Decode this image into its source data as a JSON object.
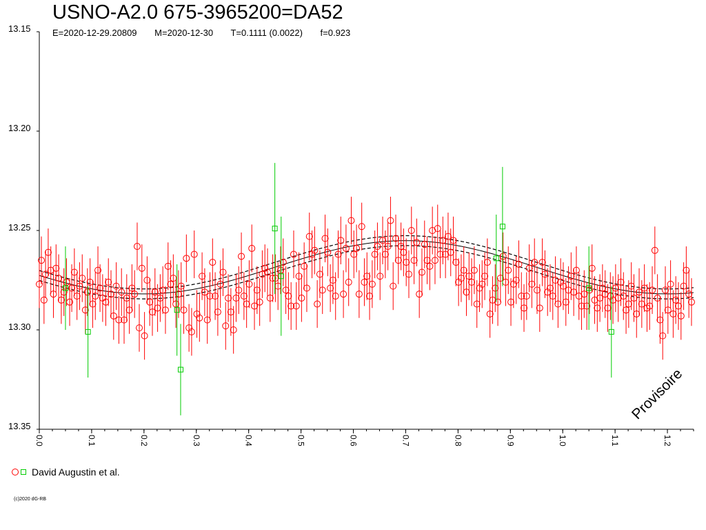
{
  "title": "USNO-A2.0 675-3965200=DA52",
  "subtitle": {
    "epoch": "E=2020-12-29.20809",
    "max": "M=2020-12-30",
    "period": "T=0.1111 (0.0022)",
    "freq": "f=0.923"
  },
  "legend": {
    "label": "David Augustin et al."
  },
  "copyright": "(c)2020 dG-RB",
  "watermark": "Provisoire",
  "colors": {
    "primary": "#ff0000",
    "secondary": "#00cc00",
    "fit": "#000000"
  },
  "chart_data": {
    "type": "scatter",
    "title": "USNO-A2.0 675-3965200=DA52",
    "xlim": [
      0.0,
      1.25
    ],
    "ylim": [
      13.15,
      13.35
    ],
    "y_inverted": true,
    "x_ticks": [
      "0.0",
      "0.1",
      "0.2",
      "0.3",
      "0.4",
      "0.5",
      "0.6",
      "0.7",
      "0.8",
      "0.9",
      "1.0",
      "1.1",
      "1.2"
    ],
    "y_ticks": [
      "13.15",
      "13.20",
      "13.25",
      "13.30",
      "13.35"
    ],
    "fit": {
      "mean": 13.2685,
      "amplitude": 0.0134,
      "phase_max": 0.7,
      "band": 0.0025
    },
    "series": [
      {
        "name": "David Augustin et al.",
        "marker": "circle",
        "points": [
          [
            0.0,
            13.277
          ],
          [
            0.004,
            13.265
          ],
          [
            0.009,
            13.285
          ],
          [
            0.012,
            13.272
          ],
          [
            0.017,
            13.261
          ],
          [
            0.022,
            13.27
          ],
          [
            0.027,
            13.282
          ],
          [
            0.032,
            13.269
          ],
          [
            0.037,
            13.274
          ],
          [
            0.042,
            13.285
          ],
          [
            0.047,
            13.281
          ],
          [
            0.052,
            13.276
          ],
          [
            0.058,
            13.286
          ],
          [
            0.062,
            13.279
          ],
          [
            0.067,
            13.271
          ],
          [
            0.072,
            13.283
          ],
          [
            0.077,
            13.278
          ],
          [
            0.082,
            13.274
          ],
          [
            0.088,
            13.29
          ],
          [
            0.092,
            13.281
          ],
          [
            0.097,
            13.276
          ],
          [
            0.102,
            13.287
          ],
          [
            0.107,
            13.283
          ],
          [
            0.112,
            13.27
          ],
          [
            0.116,
            13.279
          ],
          [
            0.121,
            13.284
          ],
          [
            0.127,
            13.286
          ],
          [
            0.132,
            13.276
          ],
          [
            0.137,
            13.282
          ],
          [
            0.142,
            13.293
          ],
          [
            0.147,
            13.278
          ],
          [
            0.152,
            13.295
          ],
          [
            0.157,
            13.281
          ],
          [
            0.162,
            13.295
          ],
          [
            0.167,
            13.284
          ],
          [
            0.172,
            13.29
          ],
          [
            0.177,
            13.279
          ],
          [
            0.182,
            13.282
          ],
          [
            0.187,
            13.258
          ],
          [
            0.191,
            13.299
          ],
          [
            0.196,
            13.269
          ],
          [
            0.201,
            13.303
          ],
          [
            0.206,
            13.275
          ],
          [
            0.211,
            13.286
          ],
          [
            0.216,
            13.291
          ],
          [
            0.221,
            13.281
          ],
          [
            0.226,
            13.289
          ],
          [
            0.231,
            13.284
          ],
          [
            0.236,
            13.28
          ],
          [
            0.241,
            13.29
          ],
          [
            0.246,
            13.268
          ],
          [
            0.251,
            13.277
          ],
          [
            0.256,
            13.274
          ],
          [
            0.261,
            13.287
          ],
          [
            0.266,
            13.282
          ],
          [
            0.271,
            13.278
          ],
          [
            0.276,
            13.29
          ],
          [
            0.281,
            13.264
          ],
          [
            0.286,
            13.299
          ],
          [
            0.291,
            13.301
          ],
          [
            0.296,
            13.262
          ],
          [
            0.301,
            13.292
          ],
          [
            0.306,
            13.294
          ],
          [
            0.311,
            13.273
          ],
          [
            0.316,
            13.281
          ],
          [
            0.321,
            13.295
          ],
          [
            0.326,
            13.283
          ],
          [
            0.331,
            13.266
          ],
          [
            0.336,
            13.283
          ],
          [
            0.341,
            13.291
          ],
          [
            0.346,
            13.277
          ],
          [
            0.351,
            13.271
          ],
          [
            0.356,
            13.298
          ],
          [
            0.361,
            13.284
          ],
          [
            0.366,
            13.291
          ],
          [
            0.371,
            13.3
          ],
          [
            0.376,
            13.284
          ],
          [
            0.381,
            13.28
          ],
          [
            0.386,
            13.263
          ],
          [
            0.391,
            13.283
          ],
          [
            0.396,
            13.287
          ],
          [
            0.401,
            13.277
          ],
          [
            0.406,
            13.259
          ],
          [
            0.411,
            13.288
          ],
          [
            0.416,
            13.28
          ],
          [
            0.421,
            13.286
          ],
          [
            0.426,
            13.272
          ],
          [
            0.431,
            13.269
          ],
          [
            0.436,
            13.271
          ],
          [
            0.441,
            13.284
          ],
          [
            0.446,
            13.274
          ],
          [
            0.451,
            13.274
          ],
          [
            0.456,
            13.278
          ],
          [
            0.461,
            13.27
          ],
          [
            0.466,
            13.266
          ],
          [
            0.471,
            13.28
          ],
          [
            0.476,
            13.283
          ],
          [
            0.481,
            13.288
          ],
          [
            0.486,
            13.262
          ],
          [
            0.491,
            13.288
          ],
          [
            0.496,
            13.273
          ],
          [
            0.501,
            13.284
          ],
          [
            0.506,
            13.268
          ],
          [
            0.511,
            13.279
          ],
          [
            0.516,
            13.253
          ],
          [
            0.521,
            13.262
          ],
          [
            0.526,
            13.26
          ],
          [
            0.531,
            13.287
          ],
          [
            0.536,
            13.272
          ],
          [
            0.541,
            13.28
          ],
          [
            0.546,
            13.254
          ],
          [
            0.551,
            13.261
          ],
          [
            0.556,
            13.279
          ],
          [
            0.561,
            13.275
          ],
          [
            0.566,
            13.283
          ],
          [
            0.571,
            13.262
          ],
          [
            0.576,
            13.255
          ],
          [
            0.581,
            13.282
          ],
          [
            0.586,
            13.259
          ],
          [
            0.591,
            13.276
          ],
          [
            0.596,
            13.245
          ],
          [
            0.601,
            13.262
          ],
          [
            0.606,
            13.259
          ],
          [
            0.611,
            13.282
          ],
          [
            0.616,
            13.248
          ],
          [
            0.621,
            13.276
          ],
          [
            0.626,
            13.273
          ],
          [
            0.631,
            13.283
          ],
          [
            0.636,
            13.277
          ],
          [
            0.641,
            13.262
          ],
          [
            0.646,
            13.258
          ],
          [
            0.651,
            13.273
          ],
          [
            0.656,
            13.255
          ],
          [
            0.661,
            13.262
          ],
          [
            0.666,
            13.258
          ],
          [
            0.671,
            13.245
          ],
          [
            0.676,
            13.278
          ],
          [
            0.681,
            13.254
          ],
          [
            0.686,
            13.265
          ],
          [
            0.691,
            13.258
          ],
          [
            0.696,
            13.261
          ],
          [
            0.701,
            13.266
          ],
          [
            0.706,
            13.272
          ],
          [
            0.711,
            13.25
          ],
          [
            0.716,
            13.265
          ],
          [
            0.721,
            13.256
          ],
          [
            0.726,
            13.282
          ],
          [
            0.731,
            13.271
          ],
          [
            0.736,
            13.257
          ],
          [
            0.741,
            13.265
          ],
          [
            0.746,
            13.268
          ],
          [
            0.751,
            13.25
          ],
          [
            0.756,
            13.265
          ],
          [
            0.761,
            13.249
          ],
          [
            0.766,
            13.262
          ],
          [
            0.771,
            13.255
          ],
          [
            0.776,
            13.262
          ],
          [
            0.781,
            13.253
          ],
          [
            0.786,
            13.261
          ],
          [
            0.791,
            13.255
          ],
          [
            0.796,
            13.266
          ],
          [
            0.801,
            13.276
          ],
          [
            0.806,
            13.274
          ],
          [
            0.811,
            13.27
          ],
          [
            0.816,
            13.281
          ],
          [
            0.821,
            13.273
          ],
          [
            0.826,
            13.276
          ],
          [
            0.831,
            13.27
          ],
          [
            0.836,
            13.287
          ],
          [
            0.841,
            13.279
          ],
          [
            0.846,
            13.277
          ],
          [
            0.851,
            13.273
          ],
          [
            0.856,
            13.266
          ],
          [
            0.861,
            13.292
          ],
          [
            0.866,
            13.285
          ],
          [
            0.871,
            13.279
          ],
          [
            0.876,
            13.286
          ],
          [
            0.881,
            13.274
          ],
          [
            0.886,
            13.263
          ],
          [
            0.891,
            13.276
          ],
          [
            0.896,
            13.27
          ],
          [
            0.901,
            13.286
          ],
          [
            0.906,
            13.277
          ],
          [
            0.911,
            13.275
          ],
          [
            0.916,
            13.267
          ],
          [
            0.921,
            13.283
          ],
          [
            0.926,
            13.289
          ],
          [
            0.931,
            13.283
          ],
          [
            0.936,
            13.269
          ],
          [
            0.941,
            13.277
          ],
          [
            0.946,
            13.266
          ],
          [
            0.951,
            13.28
          ],
          [
            0.956,
            13.289
          ],
          [
            0.961,
            13.266
          ],
          [
            0.966,
            13.272
          ],
          [
            0.971,
            13.281
          ],
          [
            0.976,
            13.279
          ],
          [
            0.981,
            13.283
          ],
          [
            0.986,
            13.275
          ],
          [
            0.991,
            13.287
          ],
          [
            0.996,
            13.276
          ],
          [
            1.001,
            13.278
          ],
          [
            1.006,
            13.286
          ],
          [
            1.011,
            13.28
          ],
          [
            1.016,
            13.273
          ],
          [
            1.021,
            13.281
          ],
          [
            1.026,
            13.27
          ],
          [
            1.031,
            13.283
          ],
          [
            1.036,
            13.288
          ],
          [
            1.041,
            13.282
          ],
          [
            1.046,
            13.288
          ],
          [
            1.051,
            13.28
          ],
          [
            1.056,
            13.269
          ],
          [
            1.061,
            13.285
          ],
          [
            1.066,
            13.289
          ],
          [
            1.071,
            13.284
          ],
          [
            1.076,
            13.279
          ],
          [
            1.081,
            13.282
          ],
          [
            1.086,
            13.289
          ],
          [
            1.091,
            13.283
          ],
          [
            1.096,
            13.285
          ],
          [
            1.101,
            13.279
          ],
          [
            1.106,
            13.284
          ],
          [
            1.111,
            13.276
          ],
          [
            1.116,
            13.283
          ],
          [
            1.121,
            13.29
          ],
          [
            1.126,
            13.287
          ],
          [
            1.131,
            13.278
          ],
          [
            1.136,
            13.284
          ],
          [
            1.141,
            13.292
          ],
          [
            1.146,
            13.281
          ],
          [
            1.151,
            13.287
          ],
          [
            1.156,
            13.279
          ],
          [
            1.161,
            13.289
          ],
          [
            1.166,
            13.288
          ],
          [
            1.171,
            13.28
          ],
          [
            1.176,
            13.26
          ],
          [
            1.181,
            13.284
          ],
          [
            1.186,
            13.295
          ],
          [
            1.191,
            13.303
          ],
          [
            1.196,
            13.28
          ],
          [
            1.201,
            13.29
          ],
          [
            1.206,
            13.277
          ],
          [
            1.211,
            13.292
          ],
          [
            1.216,
            13.285
          ],
          [
            1.221,
            13.288
          ],
          [
            1.226,
            13.293
          ],
          [
            1.231,
            13.278
          ],
          [
            1.236,
            13.27
          ],
          [
            1.241,
            13.282
          ],
          [
            1.246,
            13.286
          ]
        ],
        "error": 0.012
      },
      {
        "name": "",
        "marker": "square",
        "points": [
          [
            0.05,
            13.279
          ],
          [
            0.093,
            13.301
          ],
          [
            0.263,
            13.29
          ],
          [
            0.27,
            13.32
          ],
          [
            0.45,
            13.249
          ],
          [
            0.462,
            13.273
          ],
          [
            0.873,
            13.264
          ],
          [
            0.885,
            13.248
          ],
          [
            1.05,
            13.279
          ],
          [
            1.093,
            13.301
          ]
        ],
        "errors": [
          0.021,
          0.023,
          0.023,
          0.023,
          0.033,
          0.03,
          0.022,
          0.03,
          0.021,
          0.023
        ]
      }
    ]
  }
}
